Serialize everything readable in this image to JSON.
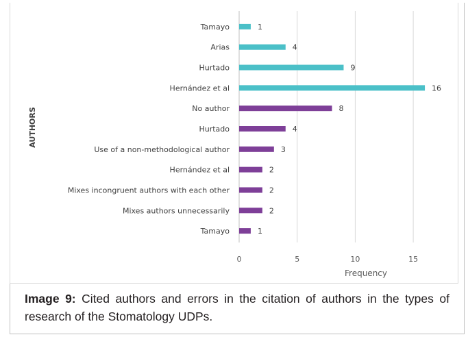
{
  "chart_data": {
    "type": "bar",
    "orientation": "horizontal",
    "ylabel": "AUTHORS",
    "xlabel": "Frequency",
    "xlim": [
      0,
      17
    ],
    "xticks": [
      0,
      5,
      10,
      15
    ],
    "grid": true,
    "categories": [
      "Tamayo",
      "Arias",
      "Hurtado",
      "Hernández et al",
      "No author",
      "Hurtado",
      "Use of a non-methodological author",
      "Hernández et al",
      "Mixes incongruent authors with each other",
      "Mixes authors unnecessarily",
      "Tamayo"
    ],
    "values": [
      1,
      4,
      9,
      16,
      8,
      4,
      3,
      2,
      2,
      2,
      1
    ],
    "bar_colors": [
      "#4bc0c8",
      "#4bc0c8",
      "#4bc0c8",
      "#4bc0c8",
      "#7e3f98",
      "#7e3f98",
      "#7e3f98",
      "#7e3f98",
      "#7e3f98",
      "#7e3f98",
      "#7e3f98"
    ]
  },
  "caption": {
    "label": "Image 9:",
    "text": " Cited authors and errors in the citation of authors in the types of research of the Stomatology UDPs."
  }
}
